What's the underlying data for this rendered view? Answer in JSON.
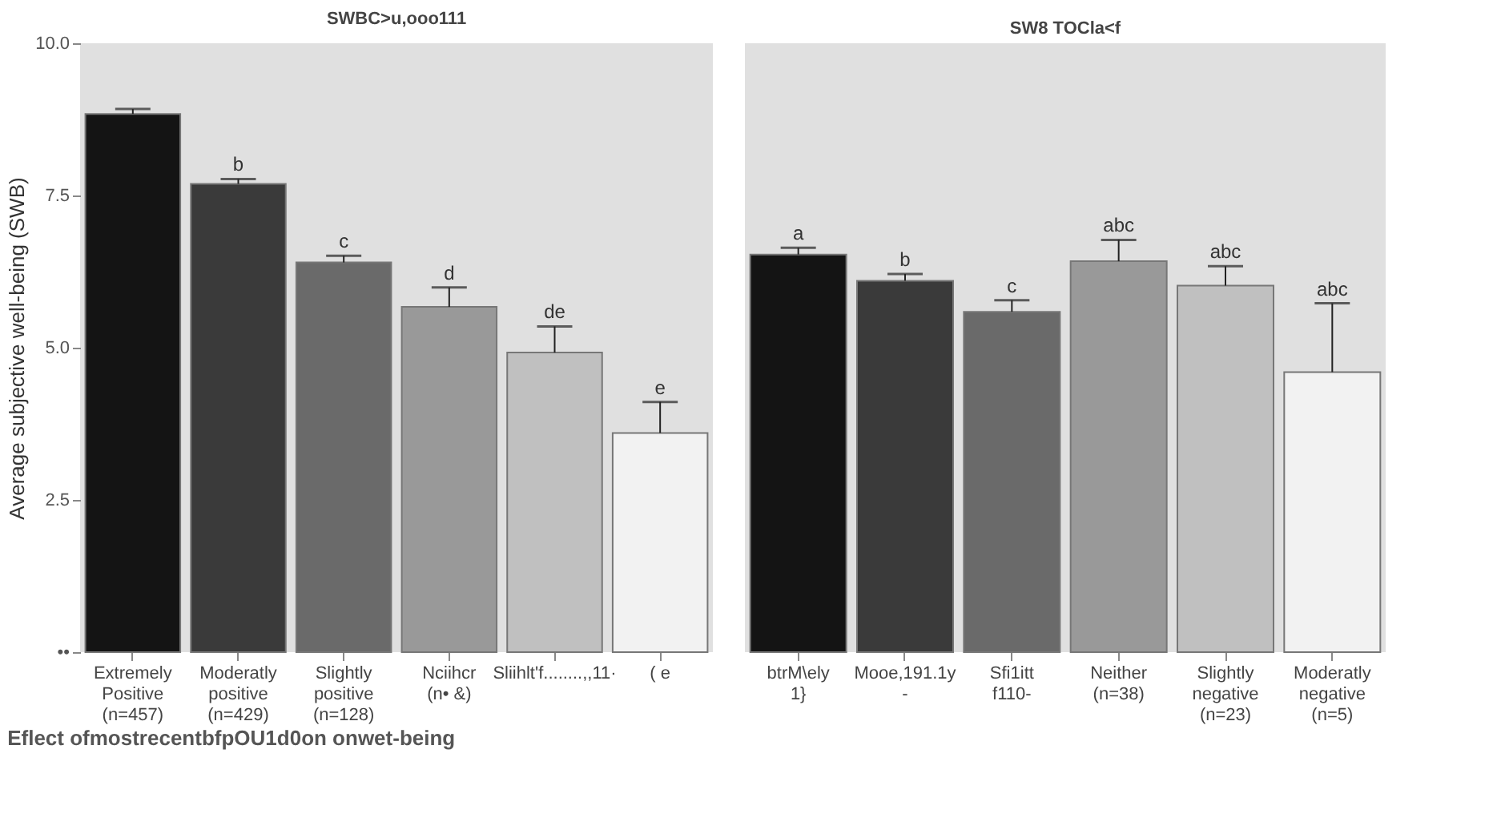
{
  "chart_data": [
    {
      "type": "bar",
      "title": "SWBC>u,ooo111",
      "xlabel": "Eflect ofmostrecentbfpOU1d0on onwet-being",
      "ylabel": "Average subjective well-being (SWB)",
      "categories": [
        "Extremely\nPositive\n(n=457)",
        "Moderatly\npositive\n(n=429)",
        "Slightly\npositive\n(n=128)",
        "Nciihcr\n(n• &)",
        "Sliihlt'f........,,11·",
        "( e"
      ],
      "values": [
        8.84,
        7.69,
        6.4,
        5.67,
        4.92,
        3.6
      ],
      "errors": [
        [
          8.84,
          8.92
        ],
        [
          7.69,
          7.77
        ],
        [
          6.4,
          6.51
        ],
        [
          5.67,
          5.99
        ],
        [
          4.92,
          5.35
        ],
        [
          3.6,
          4.11
        ]
      ],
      "colors": [
        "#141414",
        "#3a3a3a",
        "#6a6a6a",
        "#999999",
        "#c0c0c0",
        "#f2f2f2"
      ],
      "ylim": [
        0,
        10
      ],
      "yticks": [
        {
          "value": 0,
          "label": "••"
        },
        2.5,
        {
          "value": 5,
          "label": "5.0"
        },
        7.5,
        {
          "value": 10,
          "label": "10.0"
        }
      ],
      "annotations": [
        {
          "text": "b",
          "x": "Moderatly\npositive\n(n=429)",
          "y": 7.77
        },
        {
          "text": "c",
          "x": "Slightly\npositive\n(n=128)",
          "y": 6.51
        },
        {
          "text": "d",
          "x": "Nciihcr\n(n• &)",
          "y": 5.99
        },
        {
          "text": "de",
          "x": "Sliihlt'f........,,11·",
          "y": 5.35
        },
        {
          "text": "e",
          "x": "( e",
          "y": 4.11
        }
      ]
    },
    {
      "type": "bar",
      "title": "SW8 TOCla<f",
      "tick_labels": "x",
      "ylim": [
        0,
        10
      ],
      "categories": [
        "btrM\\ely\n1}",
        "Mooe,191.1y\n-",
        "Sfi1itt\nf110-",
        "Neither\n(n=38)",
        "Slightly\nnegative\n(n=23)",
        "Moderatly\nnegative\n(n=5)"
      ],
      "values": [
        6.53,
        6.1,
        5.59,
        6.42,
        6.02,
        4.6
      ],
      "errors": [
        [
          6.53,
          6.64
        ],
        [
          6.1,
          6.21
        ],
        [
          5.59,
          5.78
        ],
        [
          6.42,
          6.77
        ],
        [
          6.02,
          6.34
        ],
        [
          4.6,
          5.73
        ]
      ],
      "colors": [
        "#161616",
        "#3b3b3b",
        "#6b6b6b",
        "#9a9a9a",
        "#c2c2c2",
        "#f2f2f2"
      ],
      "annotations": [
        {
          "text": "a",
          "x": "btrM\\ely\n1}",
          "y": 6.64
        },
        {
          "text": "b",
          "x": "Mooe,191.1y\n-",
          "y": 6.21
        },
        {
          "text": "c",
          "x": "Sfi1itt\nf110-",
          "y": 5.78
        },
        {
          "text": "abc",
          "x": "Neither\n(n=38)",
          "y": 6.77
        },
        {
          "text": "abc",
          "x": "Slightly\nnegative\n(n=23)",
          "y": 6.34
        },
        {
          "text": "abc",
          "x": "Moderatly\nnegative\n(n=5)",
          "y": 5.73
        }
      ]
    }
  ]
}
